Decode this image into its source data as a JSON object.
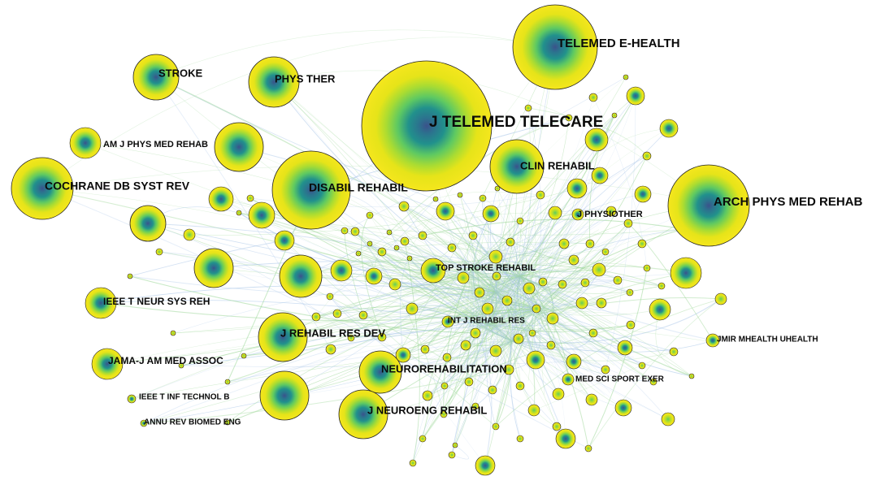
{
  "colors": {
    "background": "#ffffff",
    "node_outer": "#f2e51e",
    "node_mid": "#5ec962",
    "node_core": "#21918c",
    "node_center": "#3b528b",
    "edge_green": "#9fd89a",
    "edge_blue": "#a9c6e8",
    "outline": "#222222",
    "label": "#0a0a0a"
  },
  "journals": [
    {
      "id": "j-telemed-telecare",
      "label": "J TELEMED TELECARE",
      "size": "xl"
    },
    {
      "id": "telemed-e-health",
      "label": "TELEMED E-HEALTH",
      "size": "lg"
    },
    {
      "id": "arch-phys-med-rehab",
      "label": "ARCH PHYS MED REHAB",
      "size": "lg"
    },
    {
      "id": "stroke",
      "label": "STROKE",
      "size": "md"
    },
    {
      "id": "phys-ther",
      "label": "PHYS THER",
      "size": "md"
    },
    {
      "id": "am-j-phys-med-rehab",
      "label": "AM J PHYS MED REHAB",
      "size": "sm"
    },
    {
      "id": "cochrane-db-syst-rev",
      "label": "COCHRANE DB SYST REV",
      "size": "lg"
    },
    {
      "id": "disabil-rehabil",
      "label": "DISABIL REHABIL",
      "size": "lg"
    },
    {
      "id": "clin-rehabil",
      "label": "CLIN REHABIL",
      "size": "md"
    },
    {
      "id": "j-physiother",
      "label": "J PHYSIOTHER",
      "size": "sm"
    },
    {
      "id": "top-stroke-rehabil",
      "label": "TOP STROKE REHABIL",
      "size": "sm"
    },
    {
      "id": "ieee-t-neur-sys-reh",
      "label": "IEEE T NEUR SYS REH",
      "size": "sm"
    },
    {
      "id": "int-j-rehabil-res",
      "label": "INT J REHABIL RES",
      "size": "xs"
    },
    {
      "id": "j-rehabil-res-dev",
      "label": "J REHABIL RES DEV",
      "size": "md"
    },
    {
      "id": "jmir-mhealth-uhealth",
      "label": "JMIR MHEALTH UHEALTH",
      "size": "xs"
    },
    {
      "id": "jama-j-am-med-assoc",
      "label": "JAMA-J AM MED ASSOC",
      "size": "sm"
    },
    {
      "id": "neurorehabilitation",
      "label": "NEUROREHABILITATION",
      "size": "md"
    },
    {
      "id": "med-sci-sport-exer",
      "label": "MED SCI SPORT EXER",
      "size": "xs"
    },
    {
      "id": "ieee-t-inf-technol-b",
      "label": "IEEE T INF TECHNOL B",
      "size": "xs"
    },
    {
      "id": "j-neuroeng-rehabil",
      "label": "J NEUROENG REHABIL",
      "size": "md"
    },
    {
      "id": "annu-rev-biomed-eng",
      "label": "ANNU REV BIOMED ENG",
      "size": "xs"
    }
  ]
}
